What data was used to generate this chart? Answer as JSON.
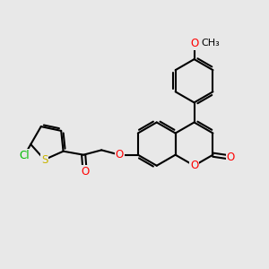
{
  "bg_color": "#e8e8e8",
  "bond_color": "#000000",
  "bond_width": 1.5,
  "atom_colors": {
    "O": "#ff0000",
    "S": "#c8b400",
    "Cl": "#00bb00",
    "C": "#000000"
  },
  "font_size": 8.5,
  "figsize": [
    3.0,
    3.0
  ],
  "dpi": 100
}
